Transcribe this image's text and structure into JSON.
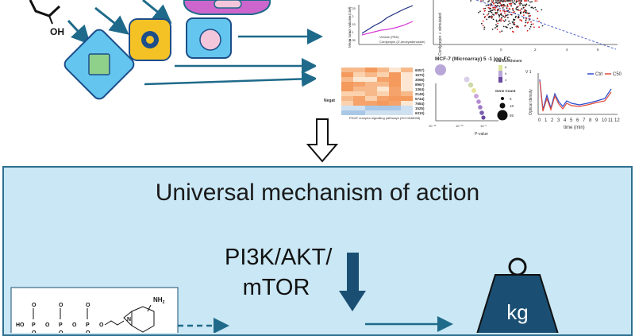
{
  "main": {
    "title": "Universal mechanism of action",
    "pathway_lines": [
      "PI3K/AKT/",
      "mTOR"
    ],
    "weight_label": "kg"
  },
  "molecule_labels": {
    "hydroxyl": "OH",
    "amine": "NH",
    "amine_sub": "2",
    "phosphorus": "P",
    "oxygen": "O",
    "nitrogen": "N",
    "ho": "HO"
  },
  "thumbnails": {
    "line_chart": {
      "legend": [
        "Vehicle (PBS)",
        "Cordycepin (3'-deoxyadenosine)"
      ],
      "ylabel": "Mean tumor volume (cm³)",
      "yticks": [
        "0.25",
        "0.2",
        "0.15",
        "0.1",
        "0.05"
      ]
    },
    "scatter": {
      "xlabel": "MCF-7 (Microarray) 5 -1 log₂FC",
      "ylabel": "Cordycepin + stimulated",
      "xticks": [
        "-4",
        "-2",
        "0",
        "2",
        "4",
        "6"
      ]
    },
    "heatmap": {
      "row_values": [
        "6057)",
        "1570)",
        "3066)",
        "8967)",
        "1364)",
        "2149)",
        "5744)",
        "7684)",
        "1525)",
        "6310)"
      ],
      "side_label": "Negat",
      "caption": "PDGF receptor signalling pathways (GO:0048008)"
    },
    "enrichment": {
      "legend_title": "Fold Enrichment",
      "legend_ticks": [
        "8",
        "6",
        "4"
      ],
      "count_title": "Gene Count",
      "count_values": [
        "6",
        "18",
        "85"
      ],
      "xlabel": "P-value",
      "xticks": [
        "10⁻¹⁵",
        "10⁻¹⁰",
        "10⁻⁵"
      ]
    },
    "density": {
      "legend": [
        "Ctrl",
        "C50"
      ],
      "ylabel": "Optical density",
      "xlabel": "time (min)",
      "xticks": [
        "0",
        "1",
        "2",
        "3",
        "4",
        "5",
        "6",
        "7",
        "8",
        "9",
        "10",
        "11",
        "12"
      ],
      "corner": "V 1"
    }
  },
  "colors": {
    "arrow_blue": "#1f6a8a",
    "panel_fill": "#c9e7f4",
    "green": "#8fd08a",
    "yellow": "#f5c226",
    "navy": "#1d4e89",
    "lightblue": "#64c6ee",
    "pink": "#f3c6dc",
    "purple": "#cc66cc",
    "weight": "#1a4f73"
  }
}
